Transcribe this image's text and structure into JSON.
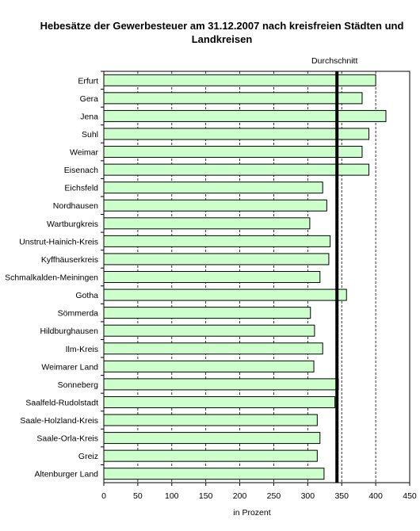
{
  "chart_data": {
    "type": "bar",
    "orientation": "horizontal",
    "title": "Hebesätze der Gewerbesteuer am 31.12.2007 nach kreisfreien Städten und Landkreisen",
    "xlabel": "in Prozent",
    "ylabel": "",
    "xlim": [
      0,
      450
    ],
    "xticks": [
      "0",
      "50",
      "100",
      "150",
      "200",
      "250",
      "300",
      "350",
      "400",
      "450"
    ],
    "grid": true,
    "bar_color": "#ccffcc",
    "categories": [
      "Erfurt",
      "Gera",
      "Jena",
      "Suhl",
      "Weimar",
      "Eisenach",
      "Eichsfeld",
      "Nordhausen",
      "Wartburgkreis",
      "Unstrut-Hainich-Kreis",
      "Kyffhäuserkreis",
      "Schmalkalden-Meiningen",
      "Gotha",
      "Sömmerda",
      "Hildburghausen",
      "Ilm-Kreis",
      "Weimarer Land",
      "Sonneberg",
      "Saalfeld-Rudolstadt",
      "Saale-Holzland-Kreis",
      "Saale-Orla-Kreis",
      "Greiz",
      "Altenburger Land"
    ],
    "values": [
      400,
      380,
      415,
      390,
      380,
      390,
      322,
      328,
      303,
      333,
      331,
      318,
      357,
      304,
      310,
      322,
      309,
      345,
      340,
      314,
      318,
      314,
      324
    ],
    "average": {
      "label": "Durchschnitt",
      "value": 343
    }
  }
}
